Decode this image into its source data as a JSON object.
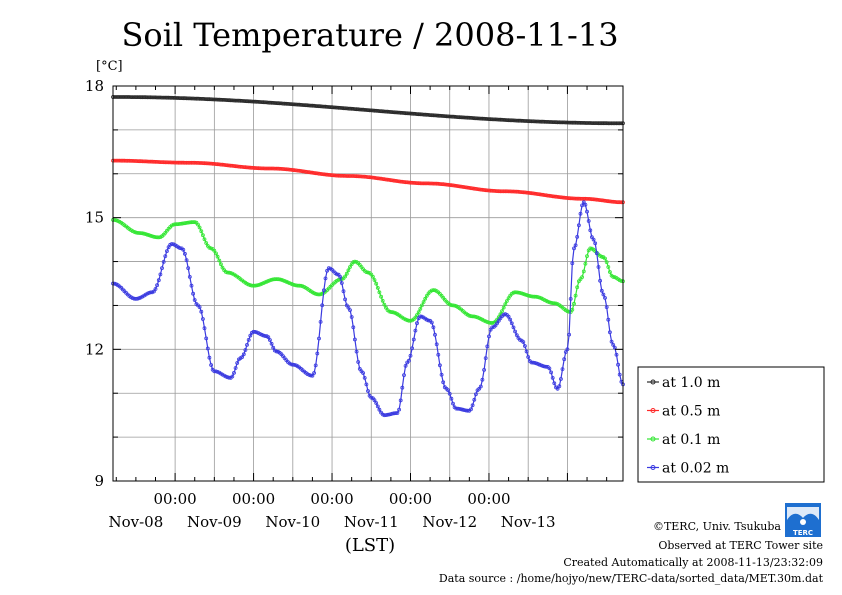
{
  "chart_data": {
    "type": "line",
    "title": "Soil Temperature / 2008-11-13",
    "ylabel": "[°C]",
    "xlabel": "(LST)",
    "ylim": [
      9,
      18
    ],
    "yticks": [
      "9",
      "12",
      "15",
      "18"
    ],
    "xlim_hours": [
      -19,
      137
    ],
    "xtick_top": [
      "00:00",
      "00:00",
      "00:00",
      "00:00",
      "00:00"
    ],
    "xtick_dates": [
      "Nov-08",
      "Nov-09",
      "Nov-10",
      "Nov-11",
      "Nov-12",
      "Nov-13"
    ],
    "grid": true,
    "legend_position": "bottom-right outside",
    "series": [
      {
        "name": "at 1.0 m",
        "color": "#2a2a2a",
        "x": [
          -19,
          137
        ],
        "y": [
          17.75,
          17.15
        ]
      },
      {
        "name": "at 0.5 m",
        "color": "#ff2a2a",
        "x": [
          -19,
          5,
          29,
          53,
          77,
          101,
          125,
          137
        ],
        "y": [
          16.3,
          16.25,
          16.12,
          15.95,
          15.78,
          15.6,
          15.43,
          15.35
        ]
      },
      {
        "name": "at 0.1 m",
        "color": "#33e633",
        "x": [
          -19,
          -11,
          -5,
          0,
          6,
          11,
          16,
          24,
          31,
          38,
          44,
          51,
          55,
          59,
          66,
          72,
          79,
          85,
          91,
          97,
          104,
          110,
          116,
          121,
          124,
          127,
          131,
          134,
          137
        ],
        "y": [
          14.95,
          14.65,
          14.55,
          14.85,
          14.9,
          14.3,
          13.75,
          13.45,
          13.6,
          13.45,
          13.25,
          13.6,
          14.0,
          13.75,
          12.85,
          12.65,
          13.35,
          13.0,
          12.75,
          12.6,
          13.3,
          13.2,
          13.05,
          12.85,
          13.6,
          14.3,
          14.1,
          13.65,
          13.55
        ]
      },
      {
        "name": "at 0.02 m",
        "color": "#3a3ae0",
        "x": [
          -19,
          -12,
          -7,
          -1,
          2,
          7,
          12,
          17,
          20,
          24,
          28,
          31,
          36,
          42,
          47,
          50,
          53,
          57,
          60,
          64,
          68,
          71,
          75,
          78,
          83,
          86,
          90,
          93,
          97,
          101,
          106,
          109,
          114,
          117,
          120,
          122,
          125,
          128,
          131,
          134,
          137
        ],
        "y": [
          13.5,
          13.15,
          13.3,
          14.4,
          14.3,
          13.0,
          11.5,
          11.35,
          11.8,
          12.4,
          12.3,
          11.95,
          11.65,
          11.4,
          13.85,
          13.7,
          12.95,
          11.5,
          10.9,
          10.5,
          10.55,
          11.7,
          12.75,
          12.65,
          11.1,
          10.65,
          10.6,
          11.1,
          12.5,
          12.8,
          12.2,
          11.7,
          11.6,
          11.1,
          12.0,
          14.3,
          15.35,
          14.5,
          13.25,
          12.1,
          11.2
        ]
      }
    ]
  },
  "credits": {
    "copyright": "©TERC, Univ. Tsukuba",
    "observed": "Observed at TERC Tower site",
    "created": "Created Automatically at 2008-11-13/23:32:09",
    "source": "Data source : /home/hojyo/new/TERC-data/sorted_data/MET.30m.dat"
  },
  "logo": {
    "text": "TERC",
    "color": "#1e6fd0"
  }
}
